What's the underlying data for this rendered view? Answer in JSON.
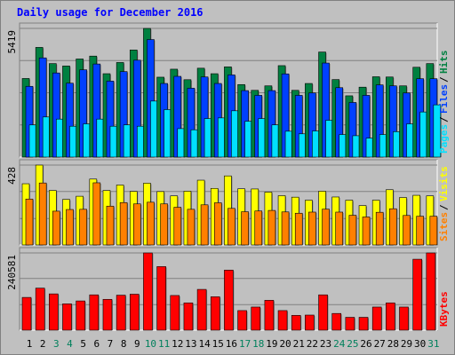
{
  "title": "Daily usage for December 2016",
  "colors": {
    "background": "#c0c0c0",
    "border": "#808080",
    "title": "#0000ff",
    "hits": "#008040",
    "files": "#0040ff",
    "pages": "#00e0ff",
    "visits": "#ffff00",
    "sites": "#ff8000",
    "kbytes": "#ff0000",
    "day_normal": "#000000",
    "day_weekend": "#00805c"
  },
  "chart_data": [
    {
      "type": "bar",
      "panel": "hits_files_pages",
      "axis_label": "5419",
      "ymax": 5419,
      "legend": [
        "Pages",
        "Files",
        "Hits"
      ],
      "categories": [
        "1",
        "2",
        "3",
        "4",
        "5",
        "6",
        "7",
        "8",
        "9",
        "10",
        "11",
        "12",
        "13",
        "14",
        "15",
        "16",
        "17",
        "18",
        "19",
        "20",
        "21",
        "22",
        "23",
        "24",
        "25",
        "26",
        "27",
        "28",
        "29",
        "30",
        "31"
      ],
      "series": [
        {
          "name": "Hits",
          "values": [
            3310,
            4619,
            3938,
            3837,
            4131,
            4253,
            3512,
            3983,
            4511,
            5419,
            3365,
            3702,
            3259,
            3743,
            3511,
            3800,
            3054,
            2811,
            3000,
            3851,
            2811,
            3100,
            4424,
            3265,
            2581,
            2945,
            3383,
            3373,
            3000,
            3783,
            3938
          ]
        },
        {
          "name": "Files",
          "values": [
            2980,
            4178,
            3543,
            3112,
            3675,
            3920,
            3200,
            3600,
            4080,
            4950,
            3100,
            3400,
            2900,
            3374,
            3100,
            3460,
            2800,
            2600,
            2800,
            3504,
            2600,
            2700,
            3960,
            2924,
            2300,
            2600,
            3040,
            3000,
            2700,
            3300,
            3300
          ]
        },
        {
          "name": "Pages",
          "values": [
            1355,
            1690,
            1600,
            1300,
            1400,
            1600,
            1300,
            1356,
            1300,
            2360,
            2000,
            1200,
            1150,
            1623,
            1650,
            1950,
            1510,
            1623,
            1356,
            1090,
            980,
            1100,
            1550,
            950,
            900,
            800,
            950,
            1070,
            1400,
            1900,
            2200
          ]
        }
      ]
    },
    {
      "type": "bar",
      "panel": "visits_sites",
      "axis_label": "428",
      "ymax": 428,
      "legend": [
        "Sites",
        "Visits"
      ],
      "categories": [
        "1",
        "2",
        "3",
        "4",
        "5",
        "6",
        "7",
        "8",
        "9",
        "10",
        "11",
        "12",
        "13",
        "14",
        "15",
        "16",
        "17",
        "18",
        "19",
        "20",
        "21",
        "22",
        "23",
        "24",
        "25",
        "26",
        "27",
        "28",
        "29",
        "30",
        "31"
      ],
      "series": [
        {
          "name": "Visits",
          "values": [
            328,
            428,
            292,
            244,
            261,
            353,
            292,
            321,
            287,
            331,
            286,
            263,
            288,
            347,
            303,
            370,
            301,
            300,
            283,
            264,
            256,
            240,
            288,
            257,
            240,
            211,
            240,
            296,
            254,
            266,
            263
          ]
        },
        {
          "name": "Sites",
          "values": [
            246,
            332,
            181,
            190,
            191,
            333,
            208,
            227,
            220,
            229,
            220,
            202,
            191,
            215,
            226,
            196,
            178,
            182,
            185,
            177,
            170,
            176,
            192,
            176,
            159,
            150,
            175,
            194,
            158,
            154,
            154
          ]
        }
      ]
    },
    {
      "type": "bar",
      "panel": "kbytes",
      "axis_label": "240581",
      "ymax": 240581,
      "legend": [
        "KBytes"
      ],
      "categories": [
        "1",
        "2",
        "3",
        "4",
        "5",
        "6",
        "7",
        "8",
        "9",
        "10",
        "11",
        "12",
        "13",
        "14",
        "15",
        "16",
        "17",
        "18",
        "19",
        "20",
        "21",
        "22",
        "23",
        "24",
        "25",
        "26",
        "27",
        "28",
        "29",
        "30",
        "31"
      ],
      "series": [
        {
          "name": "KBytes",
          "values": [
            102000,
            131000,
            113000,
            82000,
            91000,
            110000,
            96000,
            109000,
            112000,
            240581,
            198000,
            108000,
            85000,
            127000,
            104000,
            187000,
            61000,
            72000,
            93000,
            61000,
            46000,
            47000,
            110000,
            52000,
            40000,
            40000,
            72000,
            85000,
            72000,
            221000,
            240581
          ]
        }
      ]
    }
  ]
}
